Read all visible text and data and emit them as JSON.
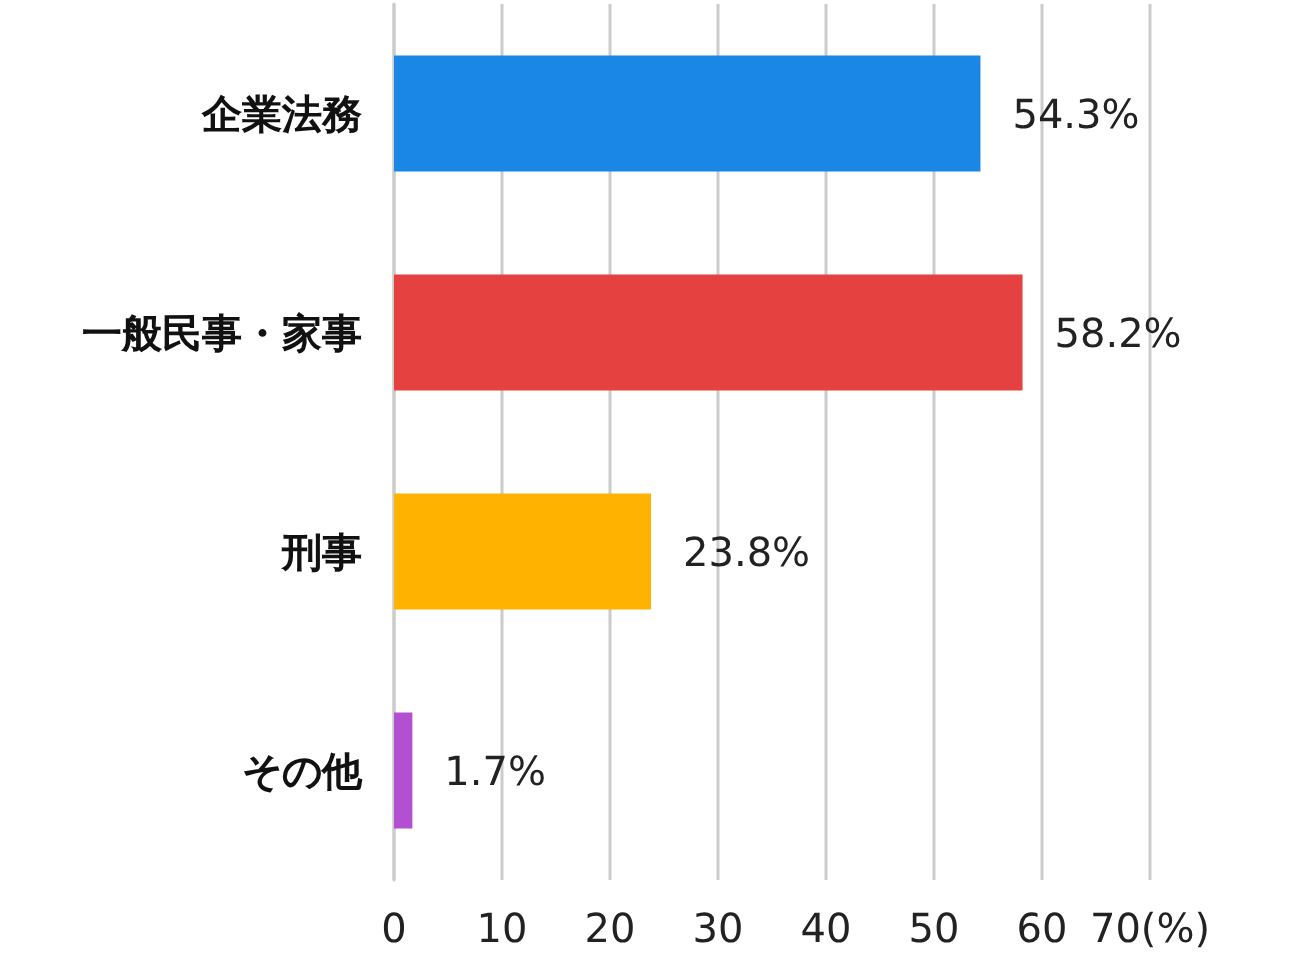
{
  "chart_data": {
    "type": "bar",
    "orientation": "horizontal",
    "categories": [
      "企業法務",
      "一般民事・家事",
      "刑事",
      "その他"
    ],
    "values": [
      54.3,
      58.2,
      23.8,
      1.7
    ],
    "colors": [
      "#1a87e6",
      "#e64141",
      "#ffb300",
      "#b34fd1"
    ],
    "value_labels": [
      "54.3%",
      "58.2%",
      "23.8%",
      "1.7%"
    ],
    "xlim": [
      0,
      70
    ],
    "xticks": [
      0,
      10,
      20,
      30,
      40,
      50,
      60,
      {
        "value": 70,
        "label": "70(%)"
      }
    ],
    "grid": "x"
  }
}
